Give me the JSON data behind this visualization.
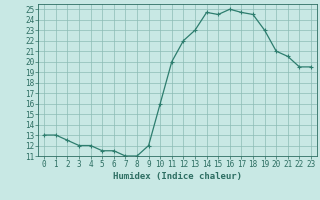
{
  "x": [
    0,
    1,
    2,
    3,
    4,
    5,
    6,
    7,
    8,
    9,
    10,
    11,
    12,
    13,
    14,
    15,
    16,
    17,
    18,
    19,
    20,
    21,
    22,
    23
  ],
  "y": [
    13,
    13,
    12.5,
    12,
    12,
    11.5,
    11.5,
    11,
    11,
    12,
    16,
    20,
    22,
    23,
    24.7,
    24.5,
    25,
    24.7,
    24.5,
    23,
    21,
    20.5,
    19.5,
    19.5
  ],
  "line_color": "#2d7d6e",
  "marker": "+",
  "bg_color": "#c8e8e4",
  "grid_color": "#8cbcb6",
  "xlabel": "Humidex (Indice chaleur)",
  "xlim": [
    -0.5,
    23.5
  ],
  "ylim": [
    11,
    25.5
  ],
  "yticks": [
    11,
    12,
    13,
    14,
    15,
    16,
    17,
    18,
    19,
    20,
    21,
    22,
    23,
    24,
    25
  ],
  "xticks": [
    0,
    1,
    2,
    3,
    4,
    5,
    6,
    7,
    8,
    9,
    10,
    11,
    12,
    13,
    14,
    15,
    16,
    17,
    18,
    19,
    20,
    21,
    22,
    23
  ],
  "tick_color": "#2d6e62",
  "label_color": "#2d6e62",
  "xlabel_fontsize": 6.5,
  "tick_fontsize": 5.5
}
